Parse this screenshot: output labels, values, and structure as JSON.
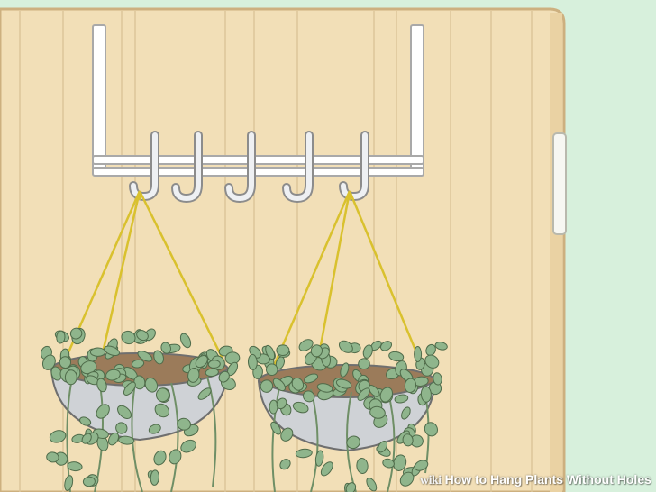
{
  "illustration": {
    "background_color": "#d7f0dc",
    "door_color": "#f2dfb7",
    "plank_line_color": "#dcc59a",
    "rack_color": "#ffffff",
    "hook_color": "#e6e8ec",
    "rope_color": "#d9c12e",
    "pot_color": "#cfd2d6",
    "leaf_color": "#8fb58c",
    "vine_color": "#6f8f66"
  },
  "watermark": {
    "brand": "wiki",
    "title": "How to Hang Plants Without Holes"
  }
}
